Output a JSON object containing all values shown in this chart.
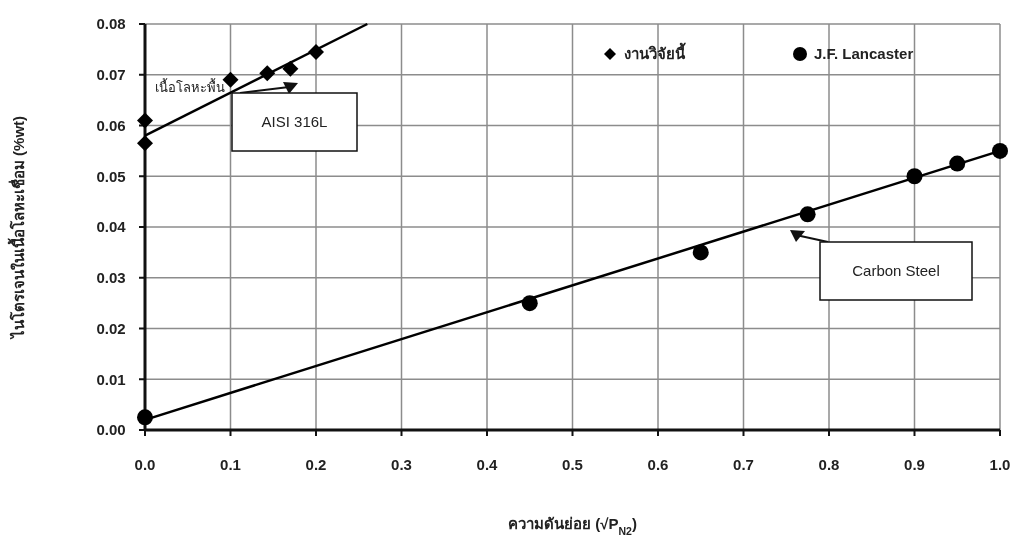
{
  "chart_data": {
    "type": "scatter",
    "xlabel": "ความดันย่อย (√P$_{N2}$)",
    "ylabel": "ไนโตรเจนในเนื้อโลหะเชื่อม (%wt)",
    "xlim": [
      0,
      1
    ],
    "ylim": [
      0,
      0.08
    ],
    "xticks": [
      {
        "value": 0,
        "label": "0.0"
      },
      0.1,
      0.2,
      0.3,
      0.4,
      0.5,
      0.6,
      0.7,
      0.8,
      0.9,
      {
        "value": 1,
        "label": "1.0"
      }
    ],
    "yticks": [
      {
        "value": 0,
        "label": "0.00"
      },
      0.01,
      0.02,
      0.03,
      0.04,
      0.05,
      0.06,
      0.07,
      0.08
    ],
    "grid": true,
    "legend": "top right",
    "series": [
      {
        "name": "งานวิจัยนี้",
        "marker": "diamond",
        "color": "#000000",
        "x": [
          0,
          0,
          0.1,
          0.143,
          0.17,
          0.2
        ],
        "values": [
          0.061,
          0.0565,
          0.069,
          0.0703,
          0.0712,
          0.0745
        ]
      },
      {
        "name": "J.F. Lancaster",
        "marker": "circle",
        "color": "#000000",
        "x": [
          0,
          0.45,
          0.65,
          0.775,
          0.9,
          0.95,
          1.0
        ],
        "values": [
          0.0025,
          0.025,
          0.035,
          0.0425,
          0.05,
          0.0525,
          0.055
        ]
      },
      {
        "type": "line",
        "marker": "none",
        "color": "#000000",
        "x": [
          0,
          0.26
        ],
        "values": [
          0.058,
          0.08
        ]
      },
      {
        "type": "line",
        "marker": "none",
        "color": "#000000",
        "x": [
          0,
          1.0
        ],
        "values": [
          0.002,
          0.055
        ]
      }
    ],
    "annotations": [
      {
        "text": "เนื้อโลหะพื้น",
        "x": 0,
        "y": 0.061
      },
      "AISI 316L",
      "Carbon Steel"
    ]
  }
}
